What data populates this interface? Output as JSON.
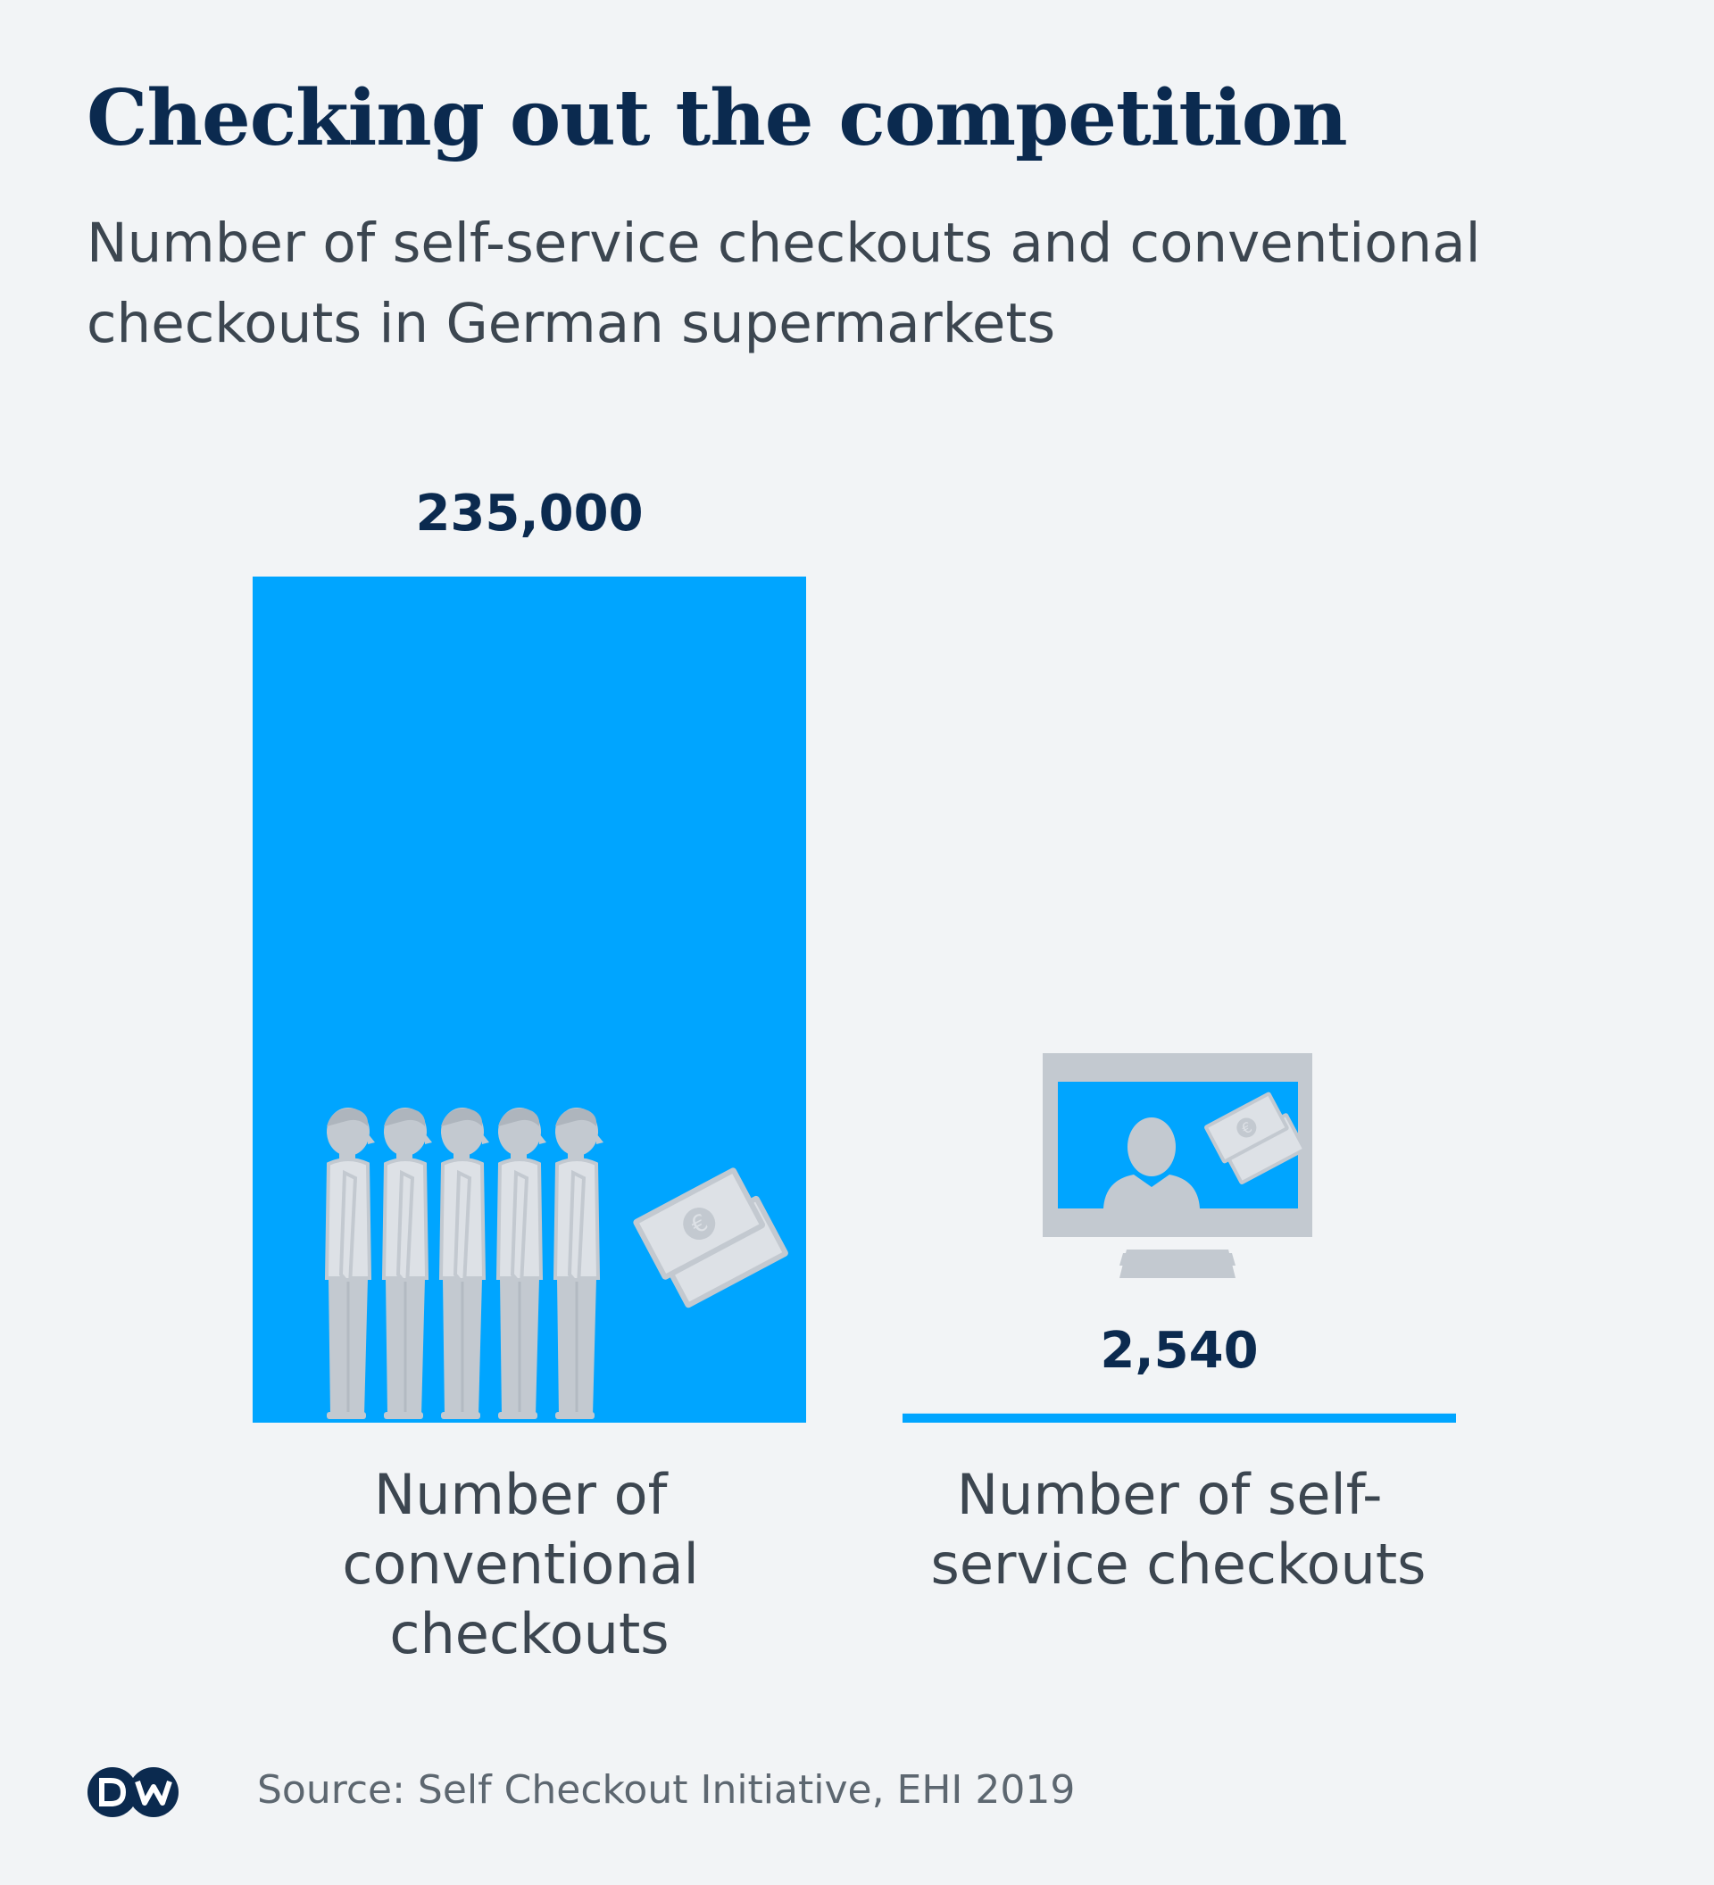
{
  "header": {
    "title": "Checking out the competition",
    "subtitle": "Number of self-service checkouts and conventional checkouts in German supermarkets"
  },
  "chart_data": {
    "type": "bar",
    "categories": [
      [
        "Number of",
        "conventional",
        "checkouts"
      ],
      [
        "Number of self-",
        "service checkouts"
      ]
    ],
    "values": [
      235000,
      2540
    ],
    "value_labels": [
      "235,000",
      "2,540"
    ],
    "ylim": [
      0,
      235000
    ],
    "grid": false,
    "legend": "none",
    "bar_color": "#00a5ff",
    "illustrations": [
      "queue-of-people-icon",
      "banknotes-icon",
      "self-checkout-monitor-icon"
    ]
  },
  "footer": {
    "logo_text": "DW",
    "source": "Source: Self Checkout Initiative, EHI 2019"
  },
  "colors": {
    "background": "#f2f4f6",
    "title": "#0b2a4f",
    "text": "#3c4650",
    "bar": "#00a5ff",
    "illustration": "#c3c9d0"
  }
}
